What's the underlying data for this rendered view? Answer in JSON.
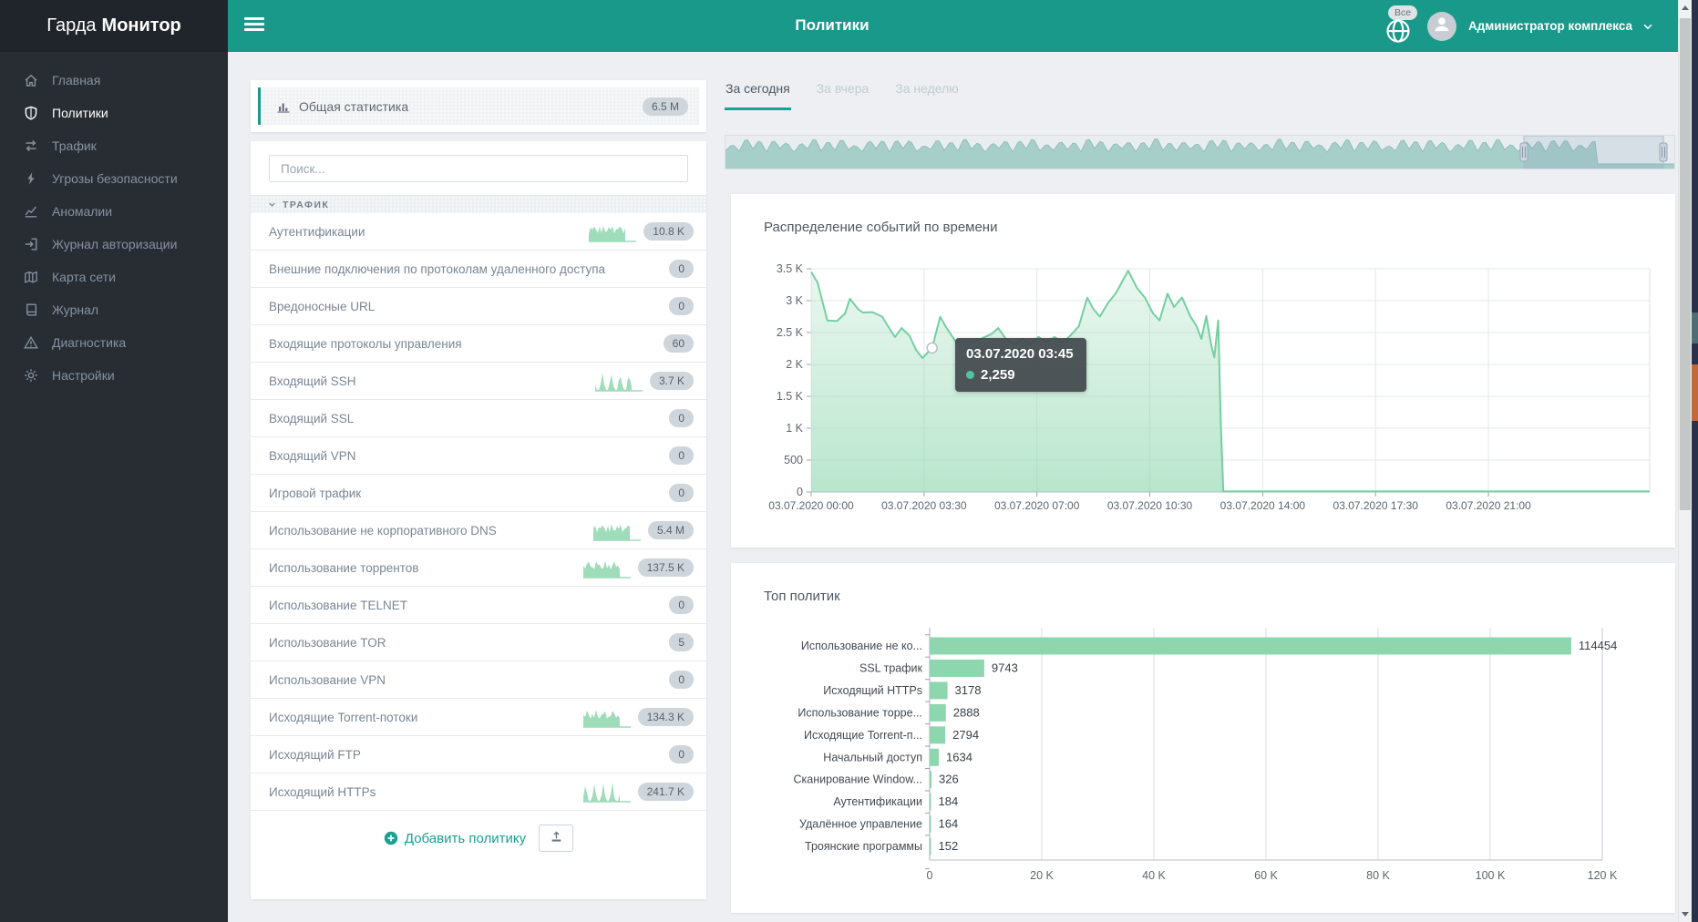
{
  "app": {
    "logo_light": "Гарда",
    "logo_bold": "Монитор"
  },
  "header": {
    "title": "Политики",
    "globe_badge": "Все",
    "user_name": "Администратор комплекса"
  },
  "sidebar": {
    "items": [
      {
        "label": "Главная",
        "icon": "home-icon",
        "active": false
      },
      {
        "label": "Политики",
        "icon": "shield-icon",
        "active": true
      },
      {
        "label": "Трафик",
        "icon": "traffic-icon",
        "active": false
      },
      {
        "label": "Угрозы безопасности",
        "icon": "bolt-icon",
        "active": false
      },
      {
        "label": "Аномалии",
        "icon": "chart-line-icon",
        "active": false
      },
      {
        "label": "Журнал авторизации",
        "icon": "sign-in-icon",
        "active": false
      },
      {
        "label": "Карта сети",
        "icon": "map-icon",
        "active": false
      },
      {
        "label": "Журнал",
        "icon": "book-icon",
        "active": false
      },
      {
        "label": "Диагностика",
        "icon": "warning-icon",
        "active": false
      },
      {
        "label": "Настройки",
        "icon": "gear-icon",
        "active": false
      }
    ]
  },
  "stats_card": {
    "label": "Общая статистика",
    "badge": "6.5 M",
    "icon": "bar-chart-icon"
  },
  "policies": {
    "search_placeholder": "Поиск...",
    "section_label": "ТРАФИК",
    "items": [
      {
        "label": "Аутентификации",
        "badge": "10.8 K",
        "sparkline": true,
        "sparse": false
      },
      {
        "label": "Внешние подключения по протоколам удаленного доступа",
        "badge": "0",
        "sparkline": false,
        "sparse": false
      },
      {
        "label": "Вредоносные URL",
        "badge": "0",
        "sparkline": false,
        "sparse": false
      },
      {
        "label": "Входящие протоколы управления",
        "badge": "60",
        "sparkline": false,
        "sparse": false
      },
      {
        "label": "Входящий SSH",
        "badge": "3.7 K",
        "sparkline": true,
        "sparse": true
      },
      {
        "label": "Входящий SSL",
        "badge": "0",
        "sparkline": false,
        "sparse": false
      },
      {
        "label": "Входящий VPN",
        "badge": "0",
        "sparkline": false,
        "sparse": false
      },
      {
        "label": "Игровой трафик",
        "badge": "0",
        "sparkline": false,
        "sparse": false
      },
      {
        "label": "Использование не корпоративного DNS",
        "badge": "5.4 M",
        "sparkline": true,
        "sparse": false
      },
      {
        "label": "Использование торрентов",
        "badge": "137.5 K",
        "sparkline": true,
        "sparse": false
      },
      {
        "label": "Использование TELNET",
        "badge": "0",
        "sparkline": false,
        "sparse": false
      },
      {
        "label": "Использование TOR",
        "badge": "5",
        "sparkline": false,
        "sparse": false
      },
      {
        "label": "Использование VPN",
        "badge": "0",
        "sparkline": false,
        "sparse": false
      },
      {
        "label": "Исходящие Torrent-потоки",
        "badge": "134.3 K",
        "sparkline": true,
        "sparse": false
      },
      {
        "label": "Исходящий FTP",
        "badge": "0",
        "sparkline": false,
        "sparse": false
      },
      {
        "label": "Исходящий HTTPs",
        "badge": "241.7 K",
        "sparkline": true,
        "sparse": true
      }
    ],
    "add_button_label": "Добавить политику"
  },
  "range_tabs": [
    {
      "label": "За сегодня",
      "active": true
    },
    {
      "label": "За вчера",
      "active": false
    },
    {
      "label": "За неделю",
      "active": false
    }
  ],
  "chart_data": [
    {
      "type": "area",
      "title": "Распределение событий по времени",
      "xlabel": "",
      "ylabel": "",
      "x_unit": "hours_of_day_03_07_2020",
      "xlim": [
        0,
        26
      ],
      "ylim": [
        0,
        3500
      ],
      "grid": true,
      "ytick_values": [
        0,
        500,
        1000,
        1500,
        2000,
        2500,
        3000,
        3500
      ],
      "ytick_labels": [
        "0",
        "500",
        "1 K",
        "1.5 K",
        "2 K",
        "2.5 K",
        "3 K",
        "3.5 K"
      ],
      "xtick_values": [
        0,
        3.5,
        7,
        10.5,
        14,
        17.5,
        21
      ],
      "xtick_labels": [
        "03.07.2020 00:00",
        "03.07.2020 03:30",
        "03.07.2020 07:00",
        "03.07.2020 10:30",
        "03.07.2020 14:00",
        "03.07.2020 17:30",
        "03.07.2020 21:00"
      ],
      "series": [
        [
          0,
          3450
        ],
        [
          0.2,
          3280
        ],
        [
          0.5,
          2690
        ],
        [
          0.8,
          2680
        ],
        [
          1.05,
          2800
        ],
        [
          1.2,
          3030
        ],
        [
          1.45,
          2870
        ],
        [
          1.6,
          2815
        ],
        [
          1.9,
          2820
        ],
        [
          2.2,
          2750
        ],
        [
          2.45,
          2545
        ],
        [
          2.6,
          2430
        ],
        [
          2.8,
          2570
        ],
        [
          3.05,
          2450
        ],
        [
          3.25,
          2230
        ],
        [
          3.45,
          2100
        ],
        [
          3.75,
          2259
        ],
        [
          4.0,
          2745
        ],
        [
          4.2,
          2570
        ],
        [
          4.5,
          2345
        ],
        [
          4.75,
          2370
        ],
        [
          5.0,
          2345
        ],
        [
          5.3,
          2410
        ],
        [
          5.6,
          2480
        ],
        [
          5.8,
          2570
        ],
        [
          6.05,
          2390
        ],
        [
          6.3,
          2310
        ],
        [
          6.55,
          2400
        ],
        [
          6.8,
          2320
        ],
        [
          7.05,
          2430
        ],
        [
          7.3,
          2350
        ],
        [
          7.55,
          2430
        ],
        [
          7.8,
          2340
        ],
        [
          8.05,
          2460
        ],
        [
          8.3,
          2600
        ],
        [
          8.56,
          3045
        ],
        [
          8.75,
          2870
        ],
        [
          8.95,
          2750
        ],
        [
          9.2,
          2960
        ],
        [
          9.45,
          3120
        ],
        [
          9.83,
          3470
        ],
        [
          10.1,
          3200
        ],
        [
          10.35,
          3045
        ],
        [
          10.6,
          2800
        ],
        [
          10.8,
          2690
        ],
        [
          11.05,
          3110
        ],
        [
          11.25,
          2900
        ],
        [
          11.5,
          3050
        ],
        [
          11.75,
          2760
        ],
        [
          11.95,
          2600
        ],
        [
          12.1,
          2400
        ],
        [
          12.25,
          2760
        ],
        [
          12.4,
          2310
        ],
        [
          12.5,
          2110
        ],
        [
          12.62,
          2690
        ],
        [
          12.7,
          1100
        ],
        [
          12.78,
          8
        ],
        [
          13.5,
          8
        ],
        [
          26,
          8
        ]
      ],
      "tooltip": {
        "title": "03.07.2020 03:45",
        "value": "2,259",
        "x": 3.75,
        "y": 2259
      },
      "line_color": "#74cfa1",
      "fill_color": "#8ed6ae"
    },
    {
      "type": "bar",
      "title": "Топ политик",
      "orientation": "horizontal",
      "categories": [
        "Использование не ко...",
        "SSL трафик",
        "Исходящий HTTPs",
        "Использование торре...",
        "Исходящие Torrent-п...",
        "Начальный доступ",
        "Сканирование Window...",
        "Аутентификации",
        "Удалённое управление",
        "Троянские программы"
      ],
      "values": [
        114454,
        9743,
        3178,
        2888,
        2794,
        1634,
        326,
        184,
        164,
        152
      ],
      "xlim": [
        0,
        120000
      ],
      "xtick_values": [
        0,
        20000,
        40000,
        60000,
        80000,
        100000,
        120000
      ],
      "xtick_labels": [
        "0",
        "20 K",
        "40 K",
        "60 K",
        "80 K",
        "100 K",
        "120 K"
      ],
      "bar_color": "#8ed6ae",
      "grid": true
    }
  ],
  "colors": {
    "accent_teal": "#18998a",
    "chart_green": "#8ed6ae",
    "badge_bg": "#ced5db",
    "sidebar_bg": "#282d34"
  }
}
